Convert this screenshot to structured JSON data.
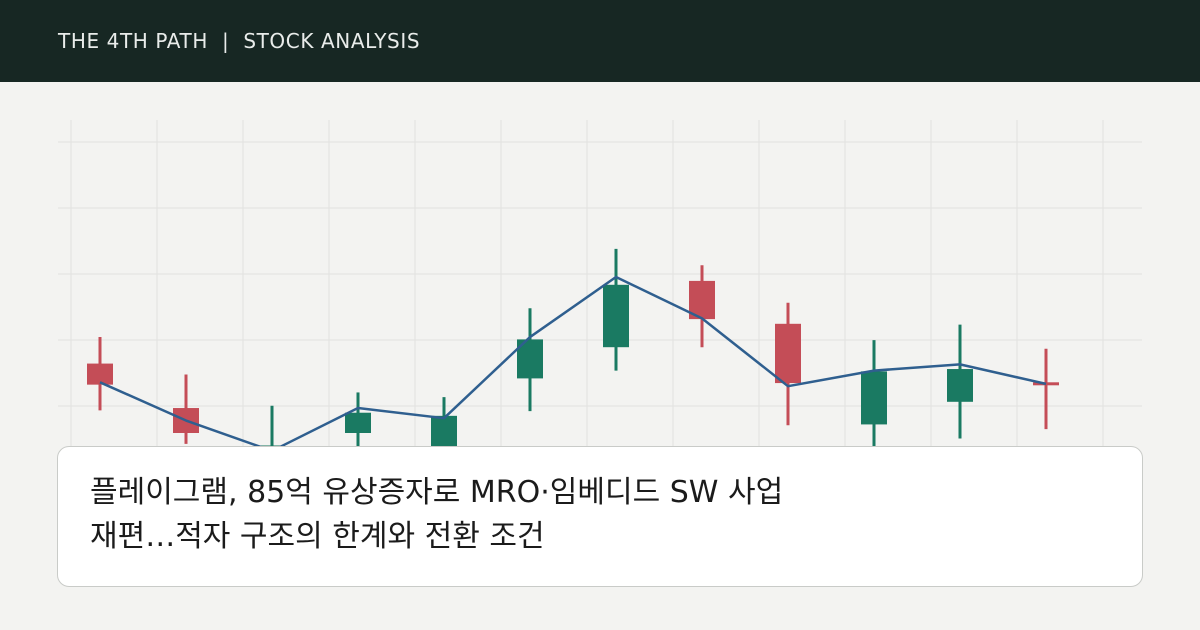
{
  "header": {
    "brand": "THE 4TH PATH",
    "separator": "|",
    "section": "STOCK ANALYSIS"
  },
  "headline": {
    "line1": "플레이그램, 85억 유상증자로 MRO·임베디드 SW 사업",
    "line2": "재편…적자 구조의 한계와 전환 조건"
  },
  "colors": {
    "header_bg": "#172723",
    "page_bg": "#f3f3f1",
    "up": "#1a7a62",
    "down": "#c44d57",
    "trend_line": "#2f5f8f",
    "grid": "#e2e2e0"
  },
  "chart_data": {
    "type": "candlestick",
    "title": "",
    "xlabel": "",
    "ylabel": "",
    "grid": true,
    "ylim": [
      0,
      50
    ],
    "candles": [
      {
        "open": 13.9,
        "close": 11.2,
        "high": 17.3,
        "low": 7.9
      },
      {
        "open": 8.2,
        "close": 5.0,
        "high": 12.5,
        "low": 3.6
      },
      {
        "open": 2.5,
        "close": 3.4,
        "high": 8.5,
        "low": 0.3
      },
      {
        "open": 5.0,
        "close": 7.6,
        "high": 10.2,
        "low": 3.0
      },
      {
        "open": 3.0,
        "close": 7.2,
        "high": 9.6,
        "low": 0.6
      },
      {
        "open": 12.0,
        "close": 17.0,
        "high": 21.0,
        "low": 7.8
      },
      {
        "open": 16.0,
        "close": 24.0,
        "high": 28.6,
        "low": 13.0
      },
      {
        "open": 24.5,
        "close": 19.6,
        "high": 26.5,
        "low": 16.0
      },
      {
        "open": 19.0,
        "close": 11.4,
        "high": 21.7,
        "low": 6.0
      },
      {
        "open": 6.1,
        "close": 12.9,
        "high": 16.9,
        "low": 2.2
      },
      {
        "open": 9.0,
        "close": 13.2,
        "high": 18.9,
        "low": 4.3
      },
      {
        "open": 11.5,
        "close": 11.2,
        "high": 15.8,
        "low": 5.5
      }
    ],
    "trend": [
      11.5,
      6.6,
      2.7,
      8.2,
      6.9,
      17.3,
      25.0,
      19.7,
      11.0,
      13.0,
      13.8,
      11.3
    ]
  }
}
